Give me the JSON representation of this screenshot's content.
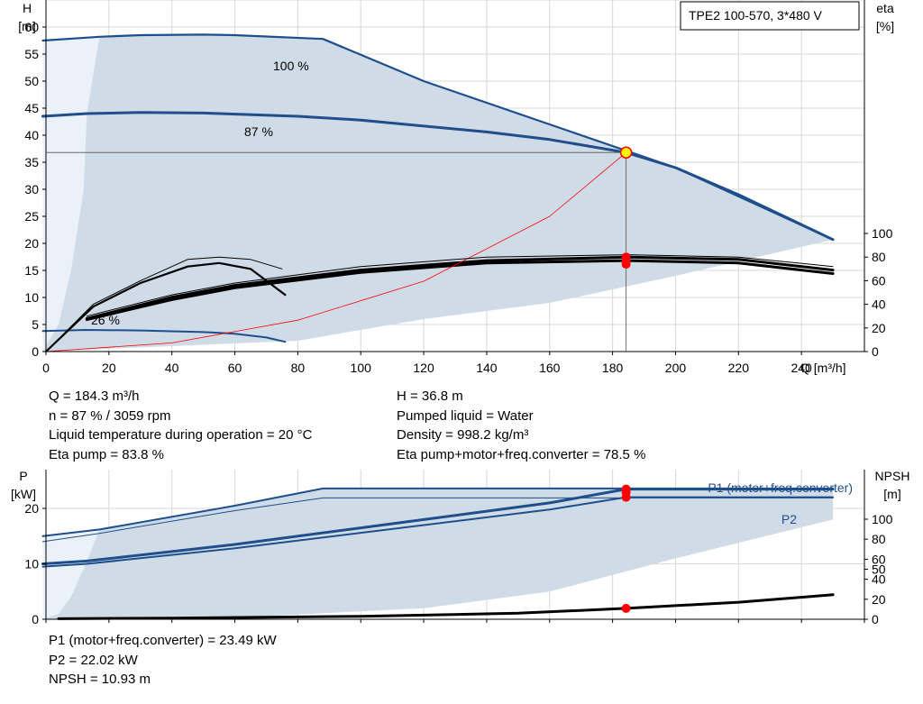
{
  "title_box": "TPE2 100-570, 3*480 V",
  "colors": {
    "envelope": "#cfdbe6",
    "envelope_light": "#eaf1f8",
    "blue": "#1f4e8c",
    "black": "#000000",
    "red": "#ff0000",
    "operating_point_fill": "#ffff00"
  },
  "chart_data": [
    {
      "type": "line",
      "name": "head-efficiency-chart",
      "x_axis": {
        "label": "Q [m³/h]",
        "range": [
          0,
          260
        ],
        "ticks": [
          0,
          20,
          40,
          60,
          80,
          100,
          120,
          140,
          160,
          180,
          200,
          220,
          240
        ]
      },
      "y_axis_left": {
        "label_top": "H",
        "label_unit": "[m]",
        "range": [
          0,
          65
        ],
        "ticks": [
          0,
          5,
          10,
          15,
          20,
          25,
          30,
          35,
          40,
          45,
          50,
          55,
          60
        ]
      },
      "y_axis_right": {
        "label_top": "eta",
        "label_unit": "[%]",
        "range": [
          0,
          100
        ],
        "ticks": [
          0,
          20,
          40,
          60,
          80,
          100
        ]
      },
      "grid": true,
      "curve_labels": [
        "100 %",
        "87 %",
        "26 %"
      ],
      "series": [
        {
          "role": "H max",
          "axis": "left",
          "x": [
            -1,
            17,
            30,
            50,
            60,
            88,
            120,
            160,
            200,
            250
          ],
          "y": [
            57.5,
            58.2,
            58.5,
            58.6,
            58.5,
            57.8,
            50,
            42,
            34,
            20.7
          ]
        },
        {
          "role": "H 87%",
          "axis": "left",
          "x": [
            -1,
            13,
            30,
            50,
            80,
            100,
            140,
            160,
            184.3,
            200,
            220,
            250
          ],
          "y": [
            43.5,
            44,
            44.2,
            44.1,
            43.5,
            42.8,
            40.6,
            39.2,
            36.8,
            34,
            29,
            20.7
          ]
        },
        {
          "role": "H 26%",
          "axis": "left",
          "x": [
            -1,
            13,
            30,
            50,
            60,
            70,
            76
          ],
          "y": [
            3.8,
            4,
            3.9,
            3.6,
            3.3,
            2.6,
            1.8
          ]
        },
        {
          "role": "eta curves max",
          "axis": "right",
          "x": [
            13,
            40,
            60,
            100,
            140,
            185,
            220,
            250
          ],
          "y": [
            28,
            46,
            56,
            69,
            77,
            80,
            78,
            69
          ]
        },
        {
          "role": "eta curves 87%",
          "axis": "right",
          "x": [
            13,
            40,
            60,
            100,
            140,
            185,
            220,
            250
          ],
          "y": [
            27,
            44,
            54,
            67,
            75,
            77,
            75,
            66
          ]
        },
        {
          "role": "eta curves 26%",
          "axis": "right",
          "x": [
            0,
            15,
            30,
            45,
            55,
            65,
            75
          ],
          "y": [
            0,
            40,
            60,
            78,
            80,
            78,
            70
          ]
        },
        {
          "role": "system curve",
          "axis": "left",
          "x": [
            0,
            40,
            80,
            120,
            160,
            184.3
          ],
          "y": [
            0,
            1.6,
            5.8,
            13,
            25,
            36.8
          ]
        }
      ],
      "operating_point": {
        "Q": 184.3,
        "H": 36.8,
        "eta_markers": [
          83.8,
          78.5
        ]
      }
    },
    {
      "type": "line",
      "name": "power-npsh-chart",
      "x_axis": {
        "range": [
          0,
          260
        ]
      },
      "y_axis_left": {
        "label_top": "P",
        "label_unit": "[kW]",
        "range": [
          0,
          27
        ],
        "ticks": [
          0,
          10,
          20
        ]
      },
      "y_axis_right": {
        "label_top": "NPSH",
        "label_unit": "[m]",
        "range": [
          0,
          125
        ],
        "ticks": [
          0,
          20,
          40,
          50,
          60,
          80,
          100
        ]
      },
      "grid": true,
      "series_labels": [
        "P1 (motor+freq.converter)",
        "P2"
      ],
      "series": [
        {
          "role": "P1 max",
          "axis": "left",
          "x": [
            -1,
            17,
            60,
            88,
            184,
            250
          ],
          "y": [
            15,
            16.2,
            20.5,
            23.6,
            23.6,
            23.6
          ]
        },
        {
          "role": "P2 max",
          "axis": "left",
          "x": [
            -1,
            17,
            60,
            88,
            184,
            250
          ],
          "y": [
            14,
            15.5,
            19.6,
            21.9,
            21.9,
            21.9
          ]
        },
        {
          "role": "P1 87%",
          "axis": "left",
          "x": [
            -1,
            13,
            60,
            100,
            160,
            184.3,
            250
          ],
          "y": [
            10,
            10.5,
            13.5,
            16.5,
            21,
            23.49,
            23.49
          ]
        },
        {
          "role": "P2 87%",
          "axis": "left",
          "x": [
            -1,
            13,
            60,
            100,
            160,
            184.3,
            250
          ],
          "y": [
            9.5,
            10,
            12.8,
            15.6,
            19.8,
            22.02,
            22.02
          ]
        },
        {
          "role": "NPSH",
          "axis": "right",
          "x": [
            4,
            40,
            100,
            150,
            184.3,
            220,
            250
          ],
          "y": [
            0.5,
            1.2,
            3,
            6,
            10.93,
            17,
            24.5
          ]
        }
      ],
      "operating_point": {
        "Q": 184.3,
        "P1": 23.49,
        "P2": 22.02,
        "NPSH": 10.93
      }
    }
  ],
  "readout_top_left": [
    "Q = 184.3 m³/h",
    "n = 87 % / 3059 rpm",
    "Liquid temperature during operation = 20 °C",
    "Eta pump = 83.8 %"
  ],
  "readout_top_right": [
    "H = 36.8 m",
    "Pumped liquid = Water",
    "Density = 998.2 kg/m³",
    "Eta pump+motor+freq.converter = 78.5 %"
  ],
  "readout_bottom": [
    "P1 (motor+freq.converter) = 23.49 kW",
    "P2 = 22.02 kW",
    "NPSH = 10.93 m"
  ]
}
